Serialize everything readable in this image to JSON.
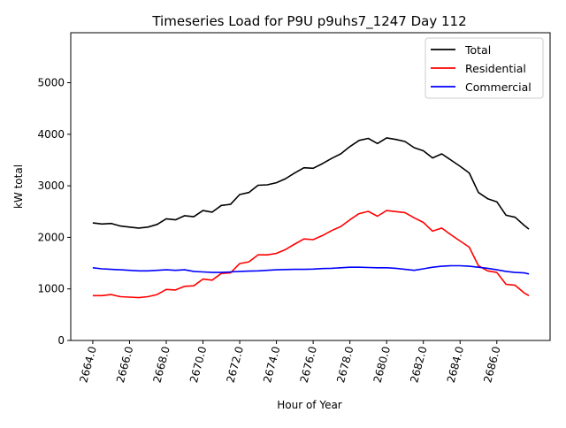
{
  "chart_data": {
    "type": "line",
    "title": "Timeseries Load for P9U p9uhs7_1247  Day 112",
    "xlabel": "Hour of Year",
    "ylabel": "kW total",
    "xlim": [
      2662.8,
      2688.9
    ],
    "ylim": [
      0,
      5970
    ],
    "xticks": [
      2664,
      2666,
      2668,
      2670,
      2672,
      2674,
      2676,
      2678,
      2680,
      2682,
      2684,
      2686
    ],
    "xtick_labels": [
      "2664.0",
      "2666.0",
      "2668.0",
      "2670.0",
      "2672.0",
      "2674.0",
      "2676.0",
      "2678.0",
      "2680.0",
      "2682.0",
      "2684.0",
      "2686.0"
    ],
    "yticks": [
      0,
      1000,
      2000,
      3000,
      4000,
      5000
    ],
    "ytick_labels": [
      "0",
      "1000",
      "2000",
      "3000",
      "4000",
      "5000"
    ],
    "grid": false,
    "legend_position": "top-right",
    "x": [
      2664,
      2664.5,
      2665,
      2665.5,
      2666,
      2666.5,
      2667,
      2667.5,
      2668,
      2668.5,
      2669,
      2669.5,
      2670,
      2670.5,
      2671,
      2671.5,
      2672,
      2672.5,
      2673,
      2673.5,
      2674,
      2674.5,
      2675,
      2675.5,
      2676,
      2676.5,
      2677,
      2677.5,
      2678,
      2678.5,
      2679,
      2679.5,
      2680,
      2680.5,
      2681,
      2681.5,
      2682,
      2682.5,
      2683,
      2683.5,
      2684,
      2684.5,
      2685,
      2685.5,
      2686,
      2686.5,
      2687,
      2687.5,
      2687.75
    ],
    "series": [
      {
        "name": "Total",
        "color": "#000000",
        "values": [
          2280,
          2260,
          2270,
          2220,
          2200,
          2180,
          2200,
          2250,
          2360,
          2340,
          2420,
          2400,
          2520,
          2490,
          2620,
          2640,
          2830,
          2870,
          3010,
          3020,
          3060,
          3140,
          3250,
          3350,
          3340,
          3430,
          3530,
          3620,
          3760,
          3880,
          3920,
          3820,
          3930,
          3900,
          3860,
          3740,
          3680,
          3540,
          3620,
          3500,
          3380,
          3250,
          2870,
          2750,
          2690,
          2430,
          2390,
          2230,
          2160
        ]
      },
      {
        "name": "Residential",
        "color": "#ff0000",
        "values": [
          870,
          870,
          890,
          850,
          840,
          830,
          850,
          890,
          990,
          980,
          1050,
          1060,
          1190,
          1170,
          1300,
          1310,
          1490,
          1525,
          1660,
          1660,
          1690,
          1765,
          1870,
          1970,
          1955,
          2035,
          2130,
          2210,
          2340,
          2460,
          2505,
          2410,
          2520,
          2500,
          2480,
          2380,
          2290,
          2120,
          2180,
          2050,
          1930,
          1810,
          1450,
          1350,
          1320,
          1090,
          1070,
          920,
          870
        ]
      },
      {
        "name": "Commercial",
        "color": "#0000ff",
        "values": [
          1410,
          1390,
          1380,
          1370,
          1360,
          1350,
          1350,
          1360,
          1370,
          1360,
          1370,
          1340,
          1330,
          1320,
          1320,
          1330,
          1340,
          1345,
          1350,
          1360,
          1370,
          1375,
          1380,
          1380,
          1385,
          1395,
          1400,
          1410,
          1420,
          1420,
          1415,
          1410,
          1410,
          1400,
          1380,
          1360,
          1390,
          1420,
          1440,
          1450,
          1450,
          1440,
          1420,
          1400,
          1370,
          1340,
          1320,
          1310,
          1290
        ]
      }
    ]
  }
}
